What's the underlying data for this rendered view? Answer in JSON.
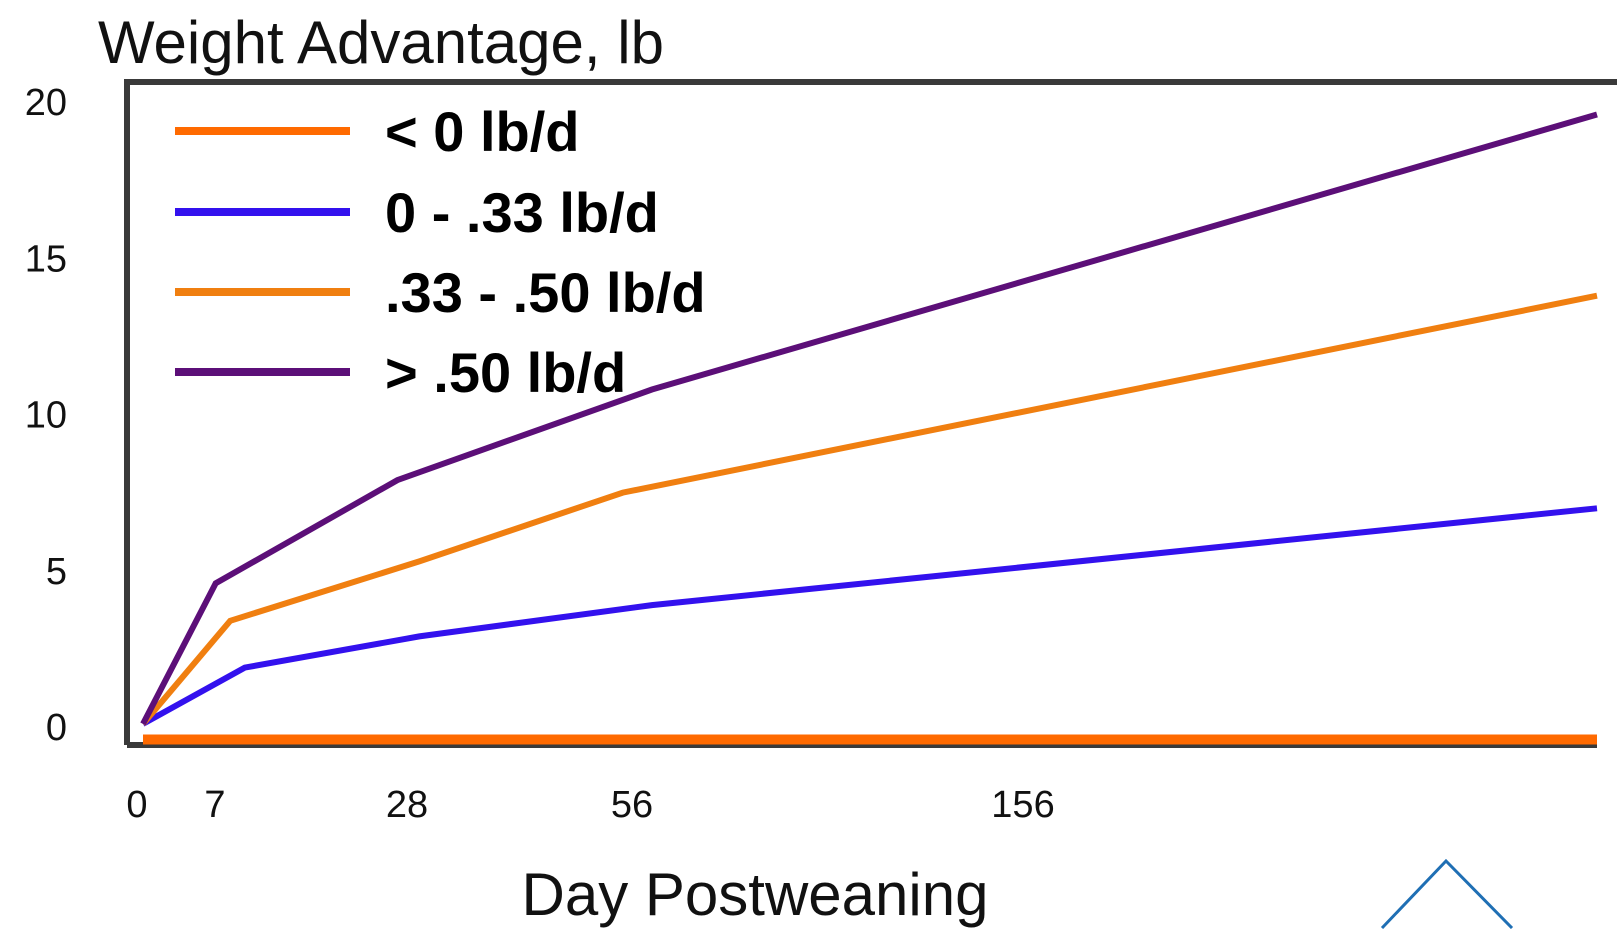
{
  "chart_data": {
    "type": "line",
    "title": "Weight Advantage, lb",
    "xlabel": "Day Postweaning",
    "ylabel": "",
    "ylim": [
      0,
      20
    ],
    "yticks": [
      "0",
      "5",
      "10",
      "15",
      "20"
    ],
    "xticks": [
      "0",
      "7",
      "28",
      "56",
      "156"
    ],
    "grid": false,
    "legend_position": "top-left",
    "series": [
      {
        "name": "< 0 lb/d",
        "color": "#ff6a00",
        "points": [
          [
            0,
            -0.4
          ],
          [
            200,
            -0.4
          ]
        ]
      },
      {
        "name": "0 - .33 lb/d",
        "color": "#3311ee",
        "points": [
          [
            0,
            0.1
          ],
          [
            14,
            1.9
          ],
          [
            38,
            2.9
          ],
          [
            70,
            3.9
          ],
          [
            200,
            7.0
          ]
        ]
      },
      {
        "name": ".33 - .50 lb/d",
        "color": "#f07f10",
        "points": [
          [
            0,
            0.1
          ],
          [
            12,
            3.4
          ],
          [
            38,
            5.3
          ],
          [
            66,
            7.5
          ],
          [
            200,
            13.8
          ]
        ]
      },
      {
        "name": "> .50 lb/d",
        "color": "#5c0f78",
        "points": [
          [
            0,
            0.1
          ],
          [
            10,
            4.6
          ],
          [
            35,
            7.9
          ],
          [
            70,
            10.8
          ],
          [
            200,
            19.6
          ]
        ]
      }
    ]
  }
}
